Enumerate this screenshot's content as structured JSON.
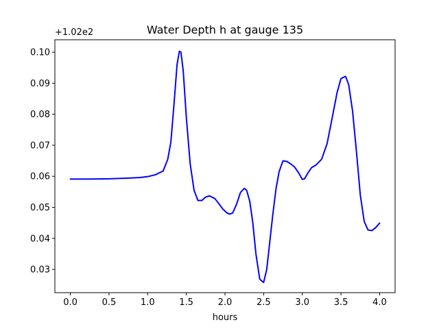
{
  "chart_data": {
    "type": "line",
    "title": "Water Depth h at gauge 135",
    "xlabel": "hours",
    "ylabel": "",
    "y_offset_label": "+1.02e2",
    "xlim": [
      -0.2,
      4.2
    ],
    "ylim": [
      0.0225,
      0.104
    ],
    "x_ticks": [
      0.0,
      0.5,
      1.0,
      1.5,
      2.0,
      2.5,
      3.0,
      3.5,
      4.0
    ],
    "x_tick_labels": [
      "0.0",
      "0.5",
      "1.0",
      "1.5",
      "2.0",
      "2.5",
      "3.0",
      "3.5",
      "4.0"
    ],
    "y_ticks": [
      0.03,
      0.04,
      0.05,
      0.06,
      0.07,
      0.08,
      0.09,
      0.1
    ],
    "y_tick_labels": [
      "0.03",
      "0.04",
      "0.05",
      "0.06",
      "0.07",
      "0.08",
      "0.09",
      "0.10"
    ],
    "grid": false,
    "series": [
      {
        "color": "#0000ff",
        "x": [
          0.0,
          0.25,
          0.5,
          0.75,
          0.9,
          1.0,
          1.1,
          1.2,
          1.26,
          1.3,
          1.34,
          1.38,
          1.41,
          1.43,
          1.46,
          1.5,
          1.55,
          1.6,
          1.65,
          1.7,
          1.75,
          1.8,
          1.87,
          1.92,
          1.97,
          2.02,
          2.06,
          2.1,
          2.15,
          2.2,
          2.25,
          2.28,
          2.32,
          2.36,
          2.4,
          2.45,
          2.5,
          2.54,
          2.58,
          2.62,
          2.66,
          2.7,
          2.75,
          2.8,
          2.85,
          2.9,
          2.95,
          3.0,
          3.03,
          3.07,
          3.12,
          3.18,
          3.25,
          3.32,
          3.38,
          3.45,
          3.5,
          3.56,
          3.6,
          3.65,
          3.7,
          3.75,
          3.8,
          3.85,
          3.9,
          3.95,
          4.0
        ],
        "y": [
          0.0591,
          0.0591,
          0.0592,
          0.0594,
          0.0596,
          0.0599,
          0.0605,
          0.0617,
          0.0655,
          0.071,
          0.083,
          0.096,
          0.1003,
          0.1,
          0.094,
          0.079,
          0.064,
          0.0555,
          0.0522,
          0.0522,
          0.0533,
          0.0537,
          0.0528,
          0.0512,
          0.0495,
          0.0483,
          0.0478,
          0.0482,
          0.051,
          0.0548,
          0.0561,
          0.0555,
          0.052,
          0.045,
          0.035,
          0.0268,
          0.0258,
          0.03,
          0.039,
          0.048,
          0.056,
          0.0615,
          0.065,
          0.0648,
          0.064,
          0.063,
          0.0612,
          0.059,
          0.0592,
          0.061,
          0.0628,
          0.0637,
          0.0655,
          0.0705,
          0.078,
          0.087,
          0.0915,
          0.0922,
          0.0895,
          0.081,
          0.068,
          0.054,
          0.0455,
          0.0427,
          0.0425,
          0.0435,
          0.0449
        ]
      }
    ]
  }
}
